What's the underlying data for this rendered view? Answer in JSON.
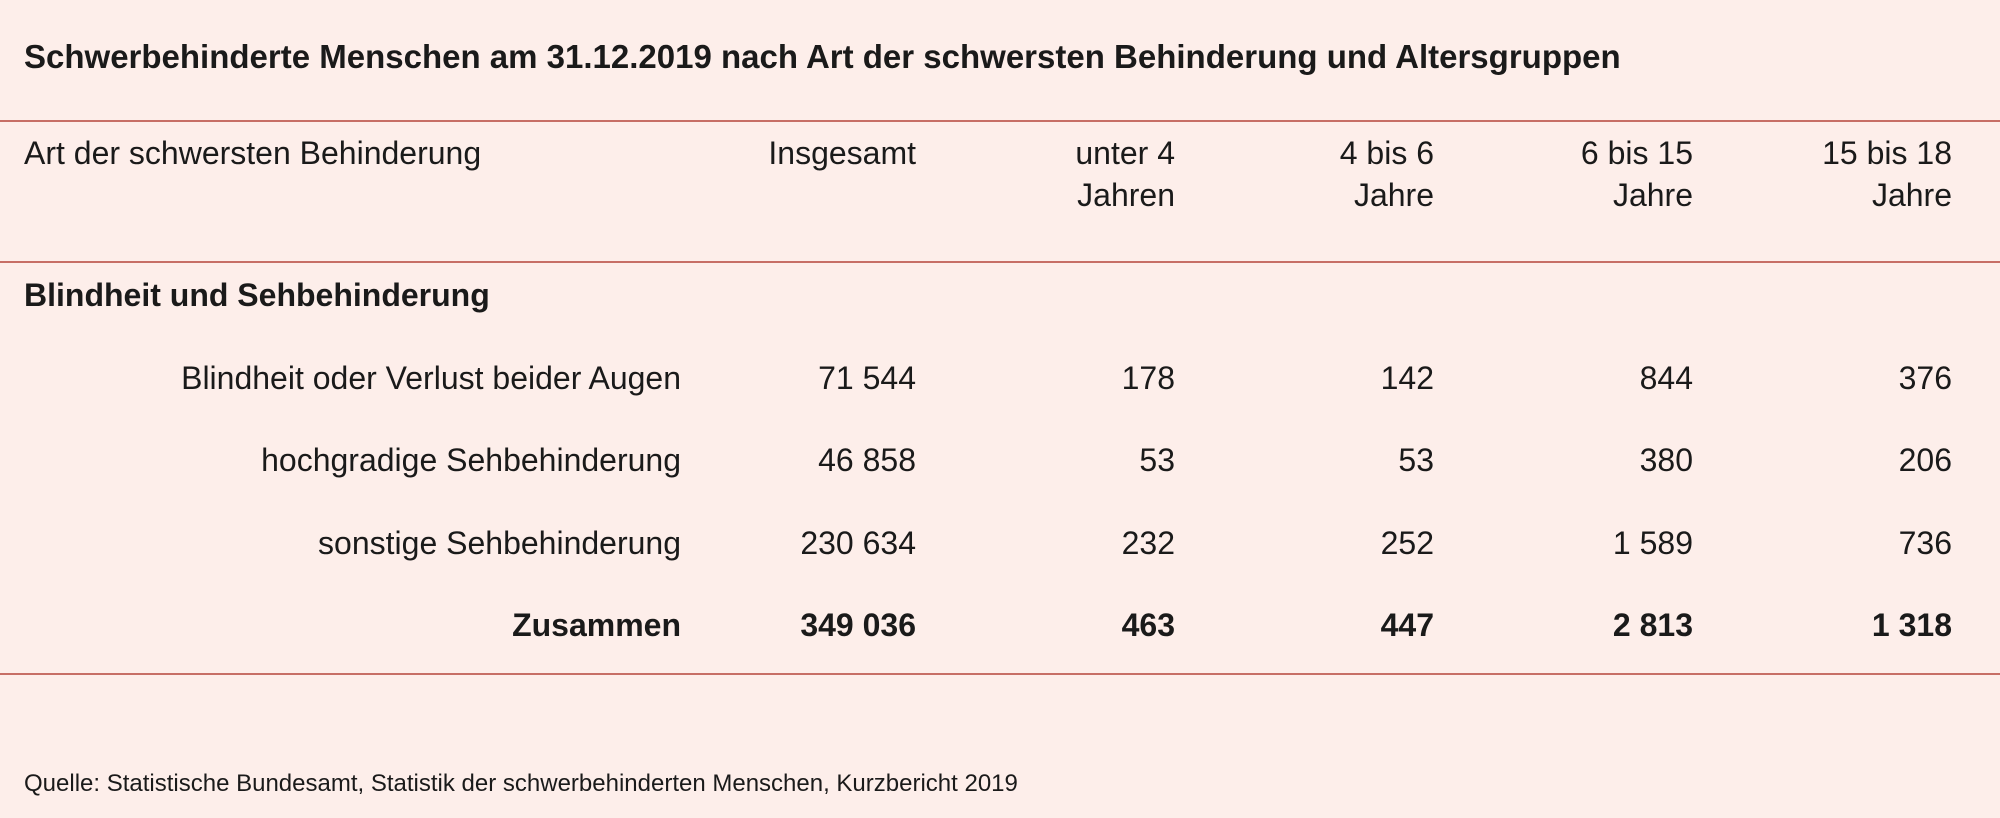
{
  "title": "Schwerbehinderte Menschen am 31.12.2019 nach Art der schwersten Behinderung und Altersgruppen",
  "table": {
    "headers": [
      [
        "Art der schwersten Behinderung"
      ],
      [
        "Insgesamt"
      ],
      [
        "unter 4",
        "Jahren"
      ],
      [
        "4 bis 6",
        "Jahre"
      ],
      [
        "6 bis 15",
        "Jahre"
      ],
      [
        "15 bis 18",
        "Jahre"
      ]
    ],
    "section": "Blindheit und Sehbehinderung",
    "rows": [
      [
        "Blindheit oder Verlust beider Augen",
        "71 544",
        "178",
        "142",
        "844",
        "376"
      ],
      [
        "hochgradige Sehbehinderung",
        "46 858",
        "53",
        "53",
        "380",
        "206"
      ],
      [
        "sonstige Sehbehinderung",
        "230 634",
        "232",
        "252",
        "1 589",
        "736"
      ]
    ],
    "total": [
      "Zusammen",
      "349 036",
      "463",
      "447",
      "2 813",
      "1 318"
    ]
  },
  "source": "Quelle: Statistische Bundesamt, Statistik der schwerbehinderten Menschen, Kurzbericht 2019"
}
